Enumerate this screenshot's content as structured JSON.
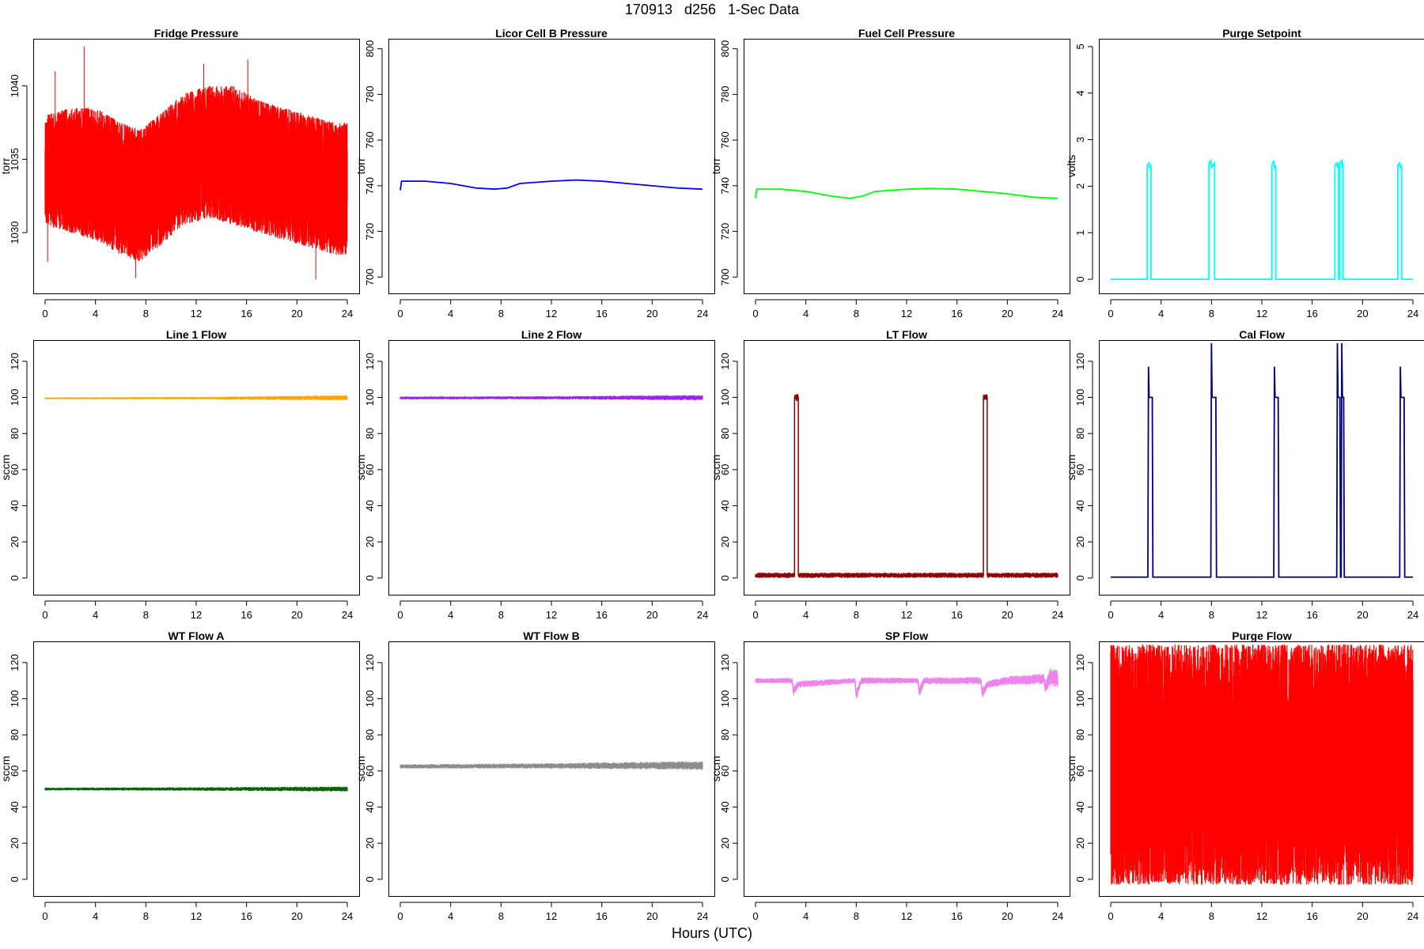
{
  "title": "170913   d256   1-Sec Data",
  "xlabel": "Hours (UTC)",
  "chart_data": [
    {
      "type": "line",
      "title": "Fridge Pressure",
      "ylabel": "torr",
      "color": "#ff0000",
      "xlim": [
        0,
        24
      ],
      "ylim": [
        1026.5,
        1043
      ],
      "yticks": [
        1030,
        1035,
        1040
      ],
      "xticks": [
        0,
        4,
        8,
        12,
        16,
        20,
        24
      ],
      "band": {
        "x": [
          0,
          2,
          4,
          6,
          7.5,
          9,
          11,
          13,
          15,
          17,
          19,
          21,
          23,
          24
        ],
        "low": [
          1030.5,
          1030,
          1029.5,
          1028.5,
          1028,
          1029,
          1030.5,
          1031,
          1030.5,
          1030,
          1029.5,
          1029,
          1028.5,
          1028.5
        ],
        "high": [
          1038,
          1038.5,
          1038.5,
          1037.5,
          1037,
          1038,
          1039.5,
          1040,
          1040,
          1039,
          1038.5,
          1038,
          1037.5,
          1037.5
        ]
      },
      "spikes": [
        [
          0.2,
          1028
        ],
        [
          0.8,
          1041
        ],
        [
          3.1,
          1042.7
        ],
        [
          7.2,
          1026.9
        ],
        [
          12.6,
          1041.5
        ],
        [
          16.1,
          1041.8
        ],
        [
          21.5,
          1026.8
        ]
      ]
    },
    {
      "type": "line",
      "title": "Licor Cell B Pressure",
      "ylabel": "torr",
      "color": "#0000ff",
      "xlim": [
        0,
        24
      ],
      "ylim": [
        697,
        803
      ],
      "yticks": [
        700,
        720,
        740,
        760,
        780,
        800
      ],
      "xticks": [
        0,
        4,
        8,
        12,
        16,
        20,
        24
      ],
      "x": [
        0,
        0.1,
        2,
        4,
        6,
        7.5,
        8.5,
        9.5,
        12,
        14,
        16,
        18,
        20,
        22,
        24
      ],
      "y": [
        738,
        742,
        742,
        741,
        739,
        738.5,
        739,
        741,
        742,
        742.5,
        742,
        741,
        740,
        739,
        738.5
      ]
    },
    {
      "type": "line",
      "title": "Fuel Cell Pressure",
      "ylabel": "torr",
      "color": "#00ff00",
      "xlim": [
        0,
        24
      ],
      "ylim": [
        697,
        803
      ],
      "yticks": [
        700,
        720,
        740,
        760,
        780,
        800
      ],
      "xticks": [
        0,
        4,
        8,
        12,
        16,
        20,
        24
      ],
      "x": [
        0,
        0.1,
        2,
        4,
        6,
        7.5,
        8.5,
        9.5,
        12,
        14,
        16,
        18,
        20,
        22,
        24
      ],
      "y": [
        734.5,
        738.5,
        738.5,
        737.5,
        735.5,
        734.5,
        735.5,
        737.5,
        738.5,
        738.8,
        738.5,
        737.5,
        736.5,
        735,
        734.5
      ]
    },
    {
      "type": "line",
      "title": "Purge Setpoint",
      "ylabel": "volts",
      "color": "#00ffff",
      "xlim": [
        0,
        24
      ],
      "ylim": [
        -0.1,
        5.1
      ],
      "yticks": [
        0,
        1,
        2,
        3,
        4,
        5
      ],
      "xticks": [
        0,
        4,
        8,
        12,
        16,
        20,
        24
      ],
      "x": [
        0,
        2.9,
        2.9,
        3.05,
        3.1,
        3.2,
        3.2,
        7.8,
        7.8,
        7.95,
        8.0,
        8.25,
        8.25,
        12.8,
        12.8,
        12.95,
        13.0,
        13.1,
        13.1,
        17.8,
        17.8,
        17.95,
        18.0,
        18.1,
        18.1,
        18.2,
        18.2,
        18.35,
        18.4,
        18.45,
        18.45,
        22.8,
        22.8,
        22.95,
        23.0,
        23.1,
        23.1,
        24
      ],
      "y": [
        0,
        0,
        2.45,
        2.5,
        2.4,
        2.45,
        0,
        0,
        2.5,
        2.55,
        2.4,
        2.5,
        0,
        0,
        2.45,
        2.55,
        2.4,
        2.45,
        0,
        0,
        2.45,
        2.5,
        2.4,
        2.5,
        0,
        0,
        2.5,
        2.55,
        2.4,
        2.5,
        0,
        0,
        2.45,
        2.5,
        2.4,
        2.45,
        0,
        0
      ]
    },
    {
      "type": "line",
      "title": "Line 1 Flow",
      "ylabel": "sccm",
      "color": "#ffa500",
      "xlim": [
        0,
        24
      ],
      "ylim": [
        -4,
        130
      ],
      "yticks": [
        0,
        20,
        40,
        60,
        80,
        100,
        120
      ],
      "xticks": [
        0,
        4,
        8,
        12,
        16,
        20,
        24
      ],
      "x": [
        0,
        12,
        24
      ],
      "y": [
        99.5,
        99.6,
        99.8
      ],
      "noise": [
        0.5,
        0.7,
        1.5
      ]
    },
    {
      "type": "line",
      "title": "Line 2 Flow",
      "ylabel": "sccm",
      "color": "#a020f0",
      "xlim": [
        0,
        24
      ],
      "ylim": [
        -4,
        130
      ],
      "yticks": [
        0,
        20,
        40,
        60,
        80,
        100,
        120
      ],
      "xticks": [
        0,
        4,
        8,
        12,
        16,
        20,
        24
      ],
      "x": [
        0,
        12,
        24
      ],
      "y": [
        99.7,
        99.8,
        99.8
      ],
      "noise": [
        0.8,
        0.9,
        1.5
      ]
    },
    {
      "type": "line",
      "title": "LT Flow",
      "ylabel": "sccm",
      "color": "#8b0000",
      "xlim": [
        0,
        24
      ],
      "ylim": [
        -4,
        130
      ],
      "yticks": [
        0,
        20,
        40,
        60,
        80,
        100,
        120
      ],
      "xticks": [
        0,
        4,
        8,
        12,
        16,
        20,
        24
      ],
      "x": [
        0,
        3.1,
        3.1,
        3.4,
        3.4,
        18.1,
        18.1,
        18.4,
        18.4,
        24
      ],
      "y": [
        1.5,
        1.5,
        100,
        100,
        1.5,
        1.5,
        100,
        100,
        1.5,
        1.5
      ],
      "noise": [
        1.5,
        1.5,
        2,
        2,
        1.5,
        1.5,
        2,
        2,
        1.5,
        1.5
      ]
    },
    {
      "type": "line",
      "title": "Cal Flow",
      "ylabel": "sccm",
      "color": "#000080",
      "xlim": [
        0,
        24
      ],
      "ylim": [
        -4,
        130
      ],
      "yticks": [
        0,
        20,
        40,
        60,
        80,
        100,
        120
      ],
      "xticks": [
        0,
        4,
        8,
        12,
        16,
        20,
        24
      ],
      "x": [
        0,
        2.95,
        3.0,
        3.05,
        3.3,
        3.35,
        7.95,
        8.0,
        8.05,
        8.35,
        8.4,
        12.95,
        13.0,
        13.05,
        13.3,
        13.35,
        17.95,
        18.0,
        18.05,
        18.2,
        18.25,
        18.3,
        18.35,
        18.4,
        18.5,
        18.55,
        22.95,
        23.0,
        23.05,
        23.3,
        23.35,
        24
      ],
      "y": [
        0.5,
        0.5,
        117,
        100,
        100,
        0.5,
        0.5,
        130,
        100,
        100,
        0.5,
        0.5,
        117,
        100,
        100,
        0.5,
        0.5,
        130,
        100,
        100,
        0.5,
        0.5,
        130,
        100,
        100,
        0.5,
        0.5,
        117,
        100,
        100,
        0.5,
        0.5
      ]
    },
    {
      "type": "line",
      "title": "WT Flow A",
      "ylabel": "sccm",
      "color": "#006400",
      "xlim": [
        0,
        24
      ],
      "ylim": [
        -4,
        130
      ],
      "yticks": [
        0,
        20,
        40,
        60,
        80,
        100,
        120
      ],
      "xticks": [
        0,
        4,
        8,
        12,
        16,
        20,
        24
      ],
      "x": [
        0,
        12,
        24
      ],
      "y": [
        50,
        50,
        50
      ],
      "noise": [
        0.8,
        1.0,
        1.4
      ]
    },
    {
      "type": "line",
      "title": "WT Flow B",
      "ylabel": "sccm",
      "color": "#8c8c8c",
      "xlim": [
        0,
        24
      ],
      "ylim": [
        -4,
        130
      ],
      "yticks": [
        0,
        20,
        40,
        60,
        80,
        100,
        120
      ],
      "xticks": [
        0,
        4,
        8,
        12,
        16,
        20,
        24
      ],
      "x": [
        0,
        12,
        24
      ],
      "y": [
        62.5,
        62.8,
        63
      ],
      "noise": [
        1.2,
        1.5,
        2.5
      ]
    },
    {
      "type": "line",
      "title": "SP Flow",
      "ylabel": "sccm",
      "color": "#ee82ee",
      "xlim": [
        0,
        24
      ],
      "ylim": [
        -4,
        130
      ],
      "yticks": [
        0,
        20,
        40,
        60,
        80,
        100,
        120
      ],
      "xticks": [
        0,
        4,
        8,
        12,
        16,
        20,
        24
      ],
      "x": [
        0,
        2.9,
        3.0,
        3.4,
        7.9,
        8.0,
        8.4,
        12.9,
        13.0,
        13.4,
        17.9,
        18.0,
        18.4,
        20,
        22.9,
        23.0,
        23.4,
        24
      ],
      "y": [
        110,
        110,
        104,
        108,
        110,
        102,
        110,
        110,
        104,
        110,
        110,
        103,
        108,
        110,
        111,
        106,
        112,
        111
      ],
      "noise": [
        1.5,
        1.5,
        3,
        2,
        1.5,
        3,
        2,
        1.5,
        3,
        2,
        2,
        3,
        2,
        2.5,
        3,
        3,
        5,
        5
      ]
    },
    {
      "type": "line",
      "title": "Purge Flow",
      "ylabel": "sccm",
      "color": "#ff0000",
      "xlim": [
        0,
        24
      ],
      "ylim": [
        -4,
        130
      ],
      "yticks": [
        0,
        20,
        40,
        60,
        80,
        100,
        120
      ],
      "xticks": [
        0,
        4,
        8,
        12,
        16,
        20,
        24
      ],
      "band": {
        "x": [
          0,
          24
        ],
        "low": [
          -3,
          -3
        ],
        "high": [
          130,
          130
        ]
      }
    }
  ]
}
